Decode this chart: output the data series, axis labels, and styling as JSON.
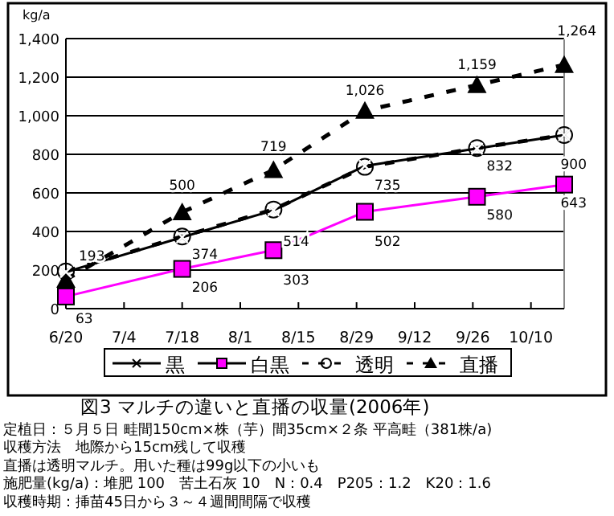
{
  "chart_data": {
    "type": "line",
    "title": "図3 マルチの違いと直播の収量(2006年)",
    "ylabel": "kg/a",
    "x": [
      "2006-06-20",
      "2006-07-18",
      "2006-08-09",
      "2006-08-31",
      "2006-09-27",
      "2006-10-18"
    ],
    "xlim": [
      "2006-06-20",
      "2006-10-18"
    ],
    "xticks": [
      {
        "value": "2006-06-20",
        "label": "6/20"
      },
      {
        "value": "2006-07-04",
        "label": "7/4"
      },
      {
        "value": "2006-07-18",
        "label": "7/18"
      },
      {
        "value": "2006-08-01",
        "label": "8/1"
      },
      {
        "value": "2006-08-15",
        "label": "8/15"
      },
      {
        "value": "2006-08-29",
        "label": "8/29"
      },
      {
        "value": "2006-09-12",
        "label": "9/12"
      },
      {
        "value": "2006-09-26",
        "label": "9/26"
      },
      {
        "value": "2006-10-10",
        "label": "10/10"
      }
    ],
    "ylim": [
      0,
      1400
    ],
    "yticks": [
      0,
      200,
      400,
      600,
      800,
      {
        "value": 1000,
        "label": "1,000"
      },
      {
        "value": 1200,
        "label": "1,200"
      },
      {
        "value": 1400,
        "label": "1,400"
      }
    ],
    "grid": "y",
    "legend": "bottom",
    "series": [
      {
        "name": "黒",
        "color": "#000000",
        "marker": "cross",
        "line_style": "solid",
        "values": [
          190,
          370,
          510,
          740,
          830,
          900
        ]
      },
      {
        "name": "白黒",
        "color": "#ff00ff",
        "marker": "square",
        "line_style": "solid",
        "values": [
          63,
          206,
          303,
          502,
          580,
          643
        ],
        "value_labels": [
          "63",
          "206",
          "303",
          "502",
          "580",
          "643"
        ]
      },
      {
        "name": "透明",
        "color": "#000000",
        "marker": "circle",
        "line_style": "dashed",
        "values": [
          193,
          374,
          514,
          735,
          832,
          900
        ],
        "value_labels": [
          "193",
          "374",
          "514",
          "735",
          "832",
          "900"
        ]
      },
      {
        "name": "直播",
        "color": "#000000",
        "marker": "triangle",
        "line_style": "dashed",
        "values": [
          150,
          500,
          719,
          1026,
          1159,
          1264
        ],
        "value_labels": [
          null,
          "500",
          "719",
          "1,026",
          "1,159",
          "1,264"
        ]
      }
    ],
    "annotations": [
      "定植日：５月５日 畦間150cm×株（芋）間35cm×２条 平高畦（381株/a)",
      "収穫方法　地際から15cm残して収穫",
      "直播は透明マルチ。用いた種は99g以下の小いも",
      "施肥量(kg/a)：堆肥 100　苦土石灰 10　N：0.4　P205：1.2　K20：1.6",
      "収穫時期：挿苗45日から３～４週間間隔で収穫"
    ]
  }
}
